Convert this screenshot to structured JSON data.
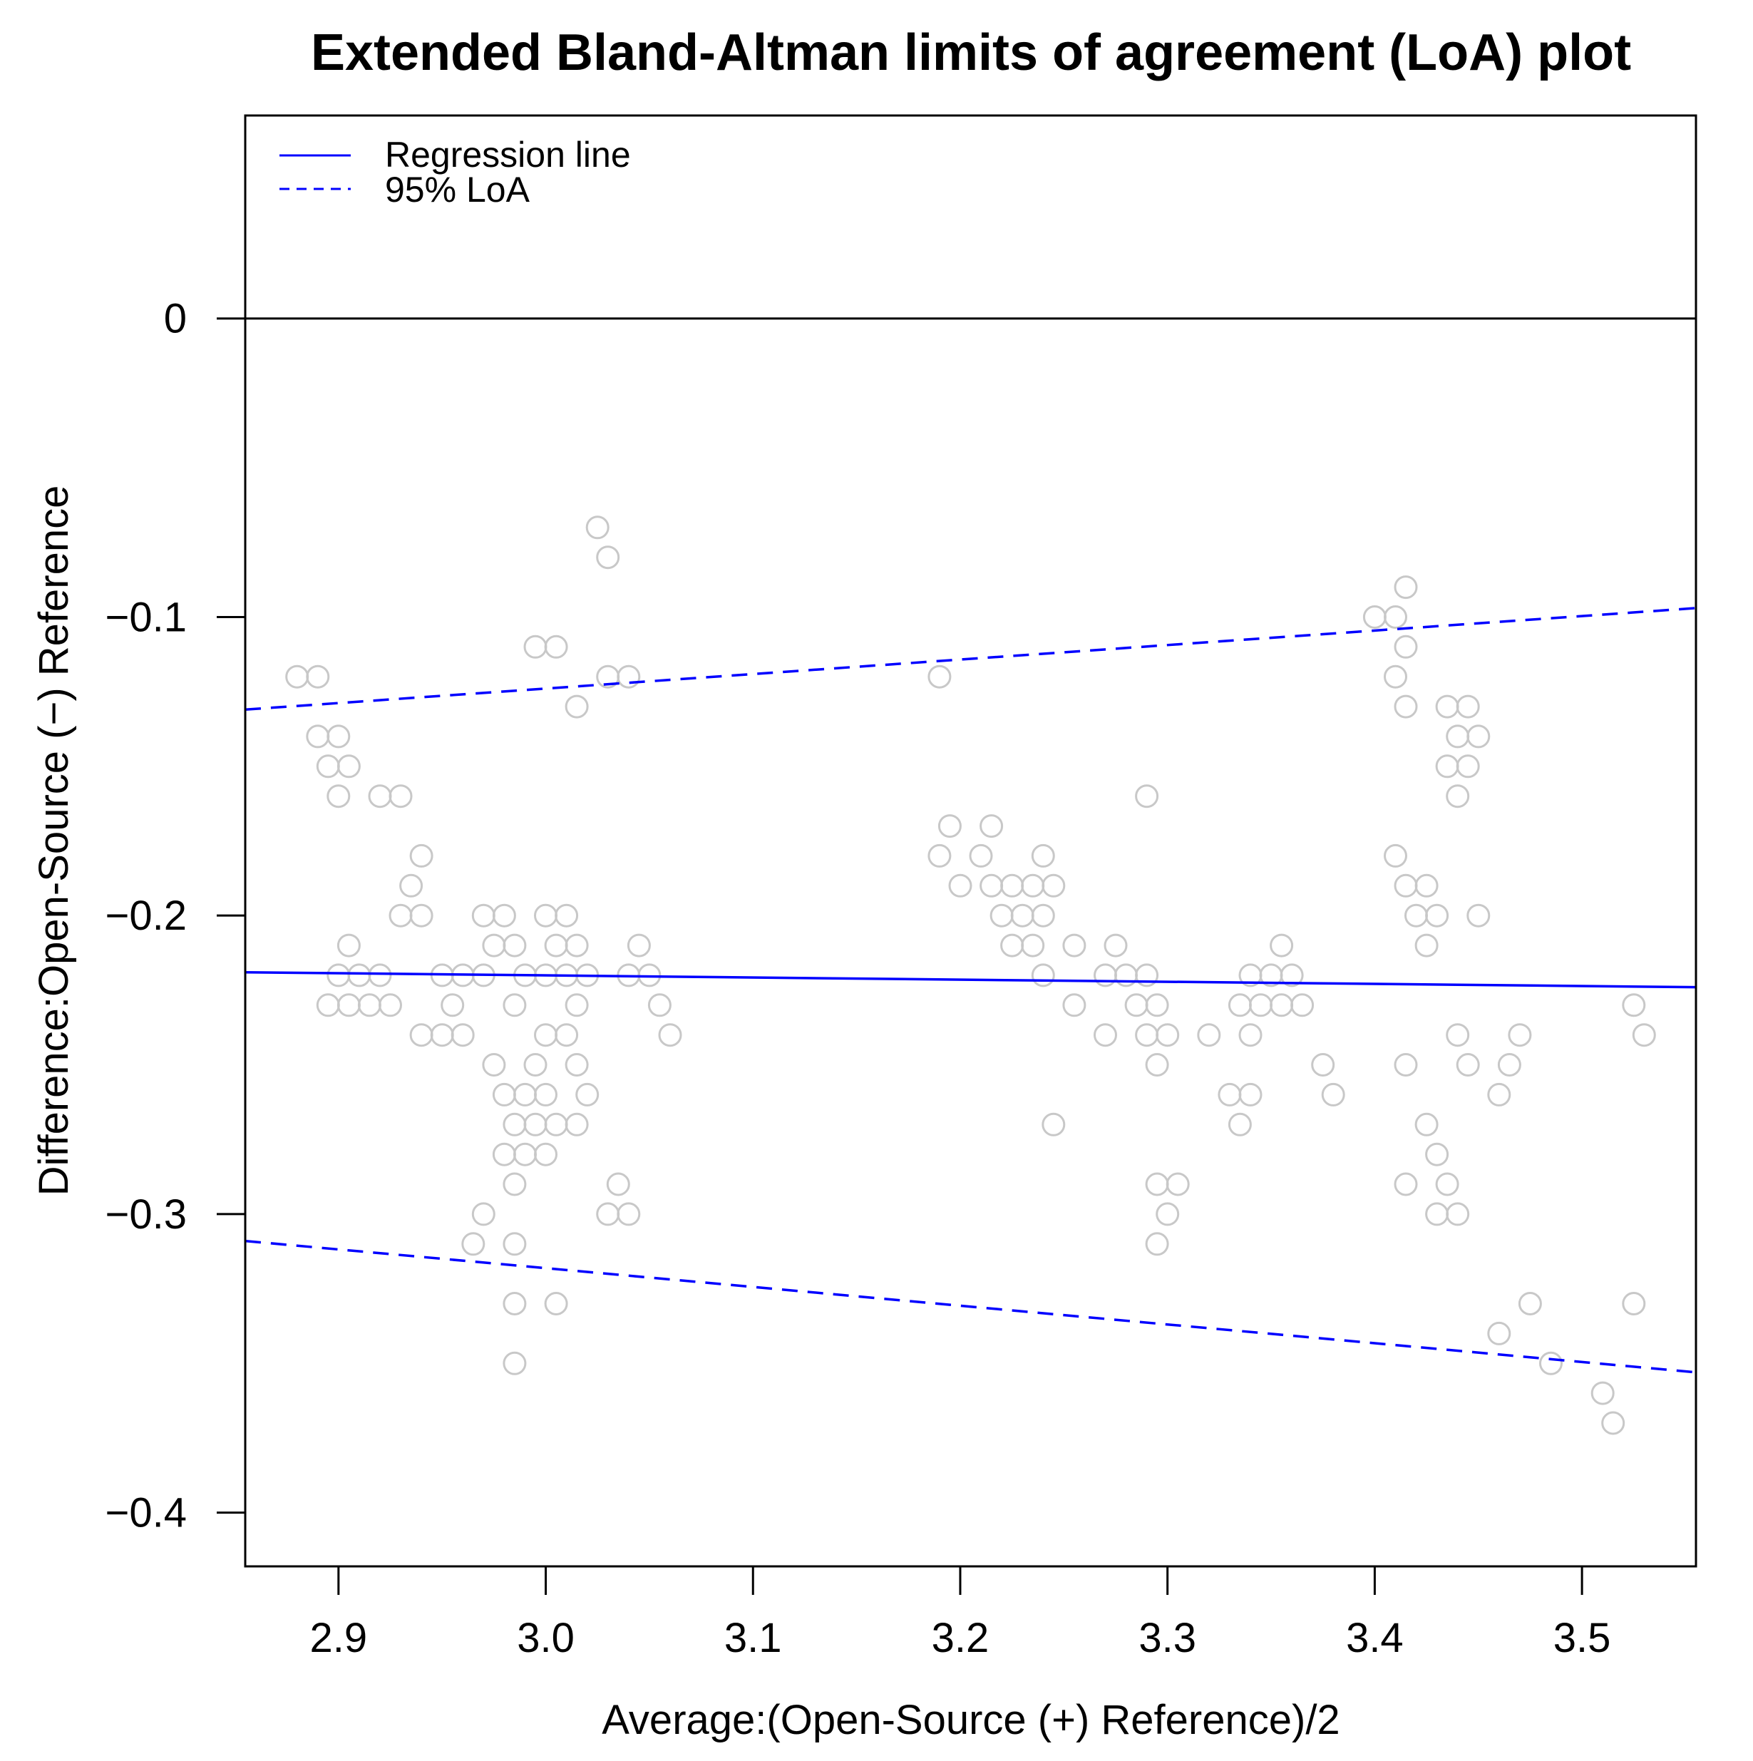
{
  "chart_data": {
    "type": "scatter",
    "title": "Extended Bland-Altman limits of agreement (LoA) plot",
    "xlabel": "Average:(Open-Source (+) Reference)/2",
    "ylabel": "Difference:Open-Source (−) Reference",
    "xlim": [
      2.855,
      3.555
    ],
    "ylim": [
      -0.418,
      0.068
    ],
    "x_ticks": [
      2.9,
      3.0,
      3.1,
      3.2,
      3.3,
      3.4,
      3.5
    ],
    "x_tick_labels": [
      "2.9",
      "3.0",
      "3.1",
      "3.2",
      "3.3",
      "3.4",
      "3.5"
    ],
    "y_ticks": [
      0,
      -0.1,
      -0.2,
      -0.3,
      -0.4
    ],
    "y_tick_labels": [
      "0",
      "−0.1",
      "−0.2",
      "−0.3",
      "−0.4"
    ],
    "grid": false,
    "legend": {
      "position": "top-left",
      "entries": [
        {
          "label": "Regression line",
          "style": "solid",
          "color": "#0000ff"
        },
        {
          "label": "95% LoA",
          "style": "dashed",
          "color": "#0000ff"
        }
      ]
    },
    "reference_line": {
      "y": 0,
      "color": "#000000"
    },
    "lines": [
      {
        "name": "Regression line",
        "style": "solid",
        "color": "#0000ff",
        "x": [
          2.855,
          3.555
        ],
        "y": [
          -0.219,
          -0.224
        ]
      },
      {
        "name": "95% LoA upper",
        "style": "dashed",
        "color": "#0000ff",
        "x": [
          2.855,
          3.555
        ],
        "y": [
          -0.131,
          -0.097
        ]
      },
      {
        "name": "95% LoA lower",
        "style": "dashed",
        "color": "#0000ff",
        "x": [
          2.855,
          3.555
        ],
        "y": [
          -0.309,
          -0.353
        ]
      }
    ],
    "point_color": "#c8c8c8",
    "points": [
      [
        2.88,
        -0.12
      ],
      [
        2.89,
        -0.12
      ],
      [
        2.89,
        -0.14
      ],
      [
        2.9,
        -0.14
      ],
      [
        2.895,
        -0.15
      ],
      [
        2.905,
        -0.15
      ],
      [
        2.9,
        -0.16
      ],
      [
        2.905,
        -0.21
      ],
      [
        2.9,
        -0.22
      ],
      [
        2.91,
        -0.22
      ],
      [
        2.92,
        -0.22
      ],
      [
        2.895,
        -0.23
      ],
      [
        2.905,
        -0.23
      ],
      [
        2.915,
        -0.23
      ],
      [
        2.925,
        -0.23
      ],
      [
        2.92,
        -0.16
      ],
      [
        2.93,
        -0.16
      ],
      [
        2.935,
        -0.19
      ],
      [
        2.94,
        -0.18
      ],
      [
        2.93,
        -0.2
      ],
      [
        2.94,
        -0.2
      ],
      [
        2.94,
        -0.24
      ],
      [
        2.95,
        -0.24
      ],
      [
        2.96,
        -0.24
      ],
      [
        2.95,
        -0.22
      ],
      [
        2.96,
        -0.22
      ],
      [
        2.97,
        -0.22
      ],
      [
        2.955,
        -0.23
      ],
      [
        2.97,
        -0.2
      ],
      [
        2.98,
        -0.2
      ],
      [
        2.975,
        -0.21
      ],
      [
        2.985,
        -0.21
      ],
      [
        2.99,
        -0.22
      ],
      [
        2.985,
        -0.23
      ],
      [
        2.975,
        -0.25
      ],
      [
        2.98,
        -0.26
      ],
      [
        2.99,
        -0.26
      ],
      [
        2.985,
        -0.27
      ],
      [
        2.98,
        -0.28
      ],
      [
        2.99,
        -0.28
      ],
      [
        2.985,
        -0.29
      ],
      [
        2.97,
        -0.3
      ],
      [
        2.965,
        -0.31
      ],
      [
        2.985,
        -0.31
      ],
      [
        2.985,
        -0.33
      ],
      [
        2.985,
        -0.35
      ],
      [
        2.995,
        -0.11
      ],
      [
        3.005,
        -0.11
      ],
      [
        3.015,
        -0.13
      ],
      [
        3.0,
        -0.2
      ],
      [
        3.01,
        -0.2
      ],
      [
        3.005,
        -0.21
      ],
      [
        3.015,
        -0.21
      ],
      [
        3.0,
        -0.22
      ],
      [
        3.01,
        -0.22
      ],
      [
        3.02,
        -0.22
      ],
      [
        3.015,
        -0.23
      ],
      [
        3.0,
        -0.24
      ],
      [
        3.01,
        -0.24
      ],
      [
        2.995,
        -0.25
      ],
      [
        3.015,
        -0.25
      ],
      [
        3.0,
        -0.26
      ],
      [
        3.02,
        -0.26
      ],
      [
        2.995,
        -0.27
      ],
      [
        3.005,
        -0.27
      ],
      [
        3.015,
        -0.27
      ],
      [
        3.0,
        -0.28
      ],
      [
        3.005,
        -0.33
      ],
      [
        3.025,
        -0.07
      ],
      [
        3.03,
        -0.08
      ],
      [
        3.03,
        -0.12
      ],
      [
        3.04,
        -0.12
      ],
      [
        3.045,
        -0.21
      ],
      [
        3.04,
        -0.22
      ],
      [
        3.05,
        -0.22
      ],
      [
        3.055,
        -0.23
      ],
      [
        3.06,
        -0.24
      ],
      [
        3.035,
        -0.29
      ],
      [
        3.03,
        -0.3
      ],
      [
        3.04,
        -0.3
      ],
      [
        3.19,
        -0.12
      ],
      [
        3.195,
        -0.17
      ],
      [
        3.19,
        -0.18
      ],
      [
        3.2,
        -0.19
      ],
      [
        3.215,
        -0.17
      ],
      [
        3.21,
        -0.18
      ],
      [
        3.215,
        -0.19
      ],
      [
        3.225,
        -0.19
      ],
      [
        3.235,
        -0.19
      ],
      [
        3.245,
        -0.19
      ],
      [
        3.24,
        -0.18
      ],
      [
        3.22,
        -0.2
      ],
      [
        3.23,
        -0.2
      ],
      [
        3.24,
        -0.2
      ],
      [
        3.225,
        -0.21
      ],
      [
        3.235,
        -0.21
      ],
      [
        3.24,
        -0.22
      ],
      [
        3.255,
        -0.21
      ],
      [
        3.255,
        -0.23
      ],
      [
        3.245,
        -0.27
      ],
      [
        3.27,
        -0.22
      ],
      [
        3.275,
        -0.21
      ],
      [
        3.28,
        -0.22
      ],
      [
        3.285,
        -0.23
      ],
      [
        3.29,
        -0.22
      ],
      [
        3.295,
        -0.23
      ],
      [
        3.27,
        -0.24
      ],
      [
        3.29,
        -0.24
      ],
      [
        3.3,
        -0.24
      ],
      [
        3.295,
        -0.25
      ],
      [
        3.29,
        -0.16
      ],
      [
        3.295,
        -0.29
      ],
      [
        3.305,
        -0.29
      ],
      [
        3.3,
        -0.3
      ],
      [
        3.295,
        -0.31
      ],
      [
        3.32,
        -0.24
      ],
      [
        3.335,
        -0.23
      ],
      [
        3.345,
        -0.23
      ],
      [
        3.34,
        -0.22
      ],
      [
        3.35,
        -0.22
      ],
      [
        3.34,
        -0.24
      ],
      [
        3.355,
        -0.21
      ],
      [
        3.36,
        -0.22
      ],
      [
        3.355,
        -0.23
      ],
      [
        3.365,
        -0.23
      ],
      [
        3.33,
        -0.26
      ],
      [
        3.34,
        -0.26
      ],
      [
        3.335,
        -0.27
      ],
      [
        3.375,
        -0.25
      ],
      [
        3.38,
        -0.26
      ],
      [
        3.4,
        -0.1
      ],
      [
        3.41,
        -0.1
      ],
      [
        3.415,
        -0.09
      ],
      [
        3.41,
        -0.12
      ],
      [
        3.415,
        -0.11
      ],
      [
        3.415,
        -0.13
      ],
      [
        3.41,
        -0.18
      ],
      [
        3.415,
        -0.19
      ],
      [
        3.425,
        -0.19
      ],
      [
        3.42,
        -0.2
      ],
      [
        3.43,
        -0.2
      ],
      [
        3.425,
        -0.21
      ],
      [
        3.415,
        -0.25
      ],
      [
        3.415,
        -0.29
      ],
      [
        3.425,
        -0.27
      ],
      [
        3.43,
        -0.28
      ],
      [
        3.43,
        -0.3
      ],
      [
        3.435,
        -0.29
      ],
      [
        3.44,
        -0.3
      ],
      [
        3.435,
        -0.13
      ],
      [
        3.445,
        -0.13
      ],
      [
        3.44,
        -0.14
      ],
      [
        3.45,
        -0.14
      ],
      [
        3.435,
        -0.15
      ],
      [
        3.445,
        -0.15
      ],
      [
        3.44,
        -0.16
      ],
      [
        3.45,
        -0.2
      ],
      [
        3.44,
        -0.24
      ],
      [
        3.445,
        -0.25
      ],
      [
        3.46,
        -0.26
      ],
      [
        3.465,
        -0.25
      ],
      [
        3.47,
        -0.24
      ],
      [
        3.46,
        -0.34
      ],
      [
        3.475,
        -0.33
      ],
      [
        3.485,
        -0.35
      ],
      [
        3.51,
        -0.36
      ],
      [
        3.515,
        -0.37
      ],
      [
        3.525,
        -0.23
      ],
      [
        3.53,
        -0.24
      ],
      [
        3.525,
        -0.33
      ]
    ]
  }
}
